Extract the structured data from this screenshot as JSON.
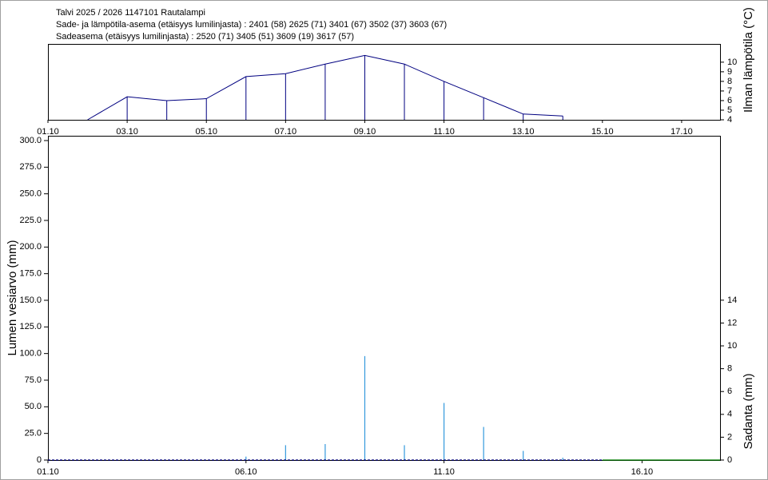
{
  "chart_data": [
    {
      "type": "line",
      "title": "Talvi 2025 / 2026 1147101 Rautalampi",
      "subtitles": [
        "Sade- ja lämpötila-asema (etäisyys lumilinjasta) :  2401 (58) 2625 (71) 3401 (67) 3502 (37) 3603 (67)",
        "Sadeasema (etäisyys lumilinjasta) :  2520 (71) 3405 (51) 3609 (19) 3617 (57)"
      ],
      "y_label": "Ilman lämpötila (°C)",
      "y_axis_side": "right",
      "drop_lines": true,
      "xlim": [
        1,
        17.97
      ],
      "xticks": [
        {
          "value": 1,
          "label": "01.10"
        },
        {
          "value": 3,
          "label": "03.10"
        },
        {
          "value": 5,
          "label": "05.10"
        },
        {
          "value": 7,
          "label": "07.10"
        },
        {
          "value": 9,
          "label": "09.10"
        },
        {
          "value": 11,
          "label": "11.10"
        },
        {
          "value": 13,
          "label": "13.10"
        },
        {
          "value": 15,
          "label": "15.10"
        },
        {
          "value": 17,
          "label": "17.10"
        }
      ],
      "ylim": [
        4,
        11.9
      ],
      "yticks": [
        4,
        5,
        6,
        7,
        8,
        9,
        10
      ],
      "series": [
        {
          "color": "#000080",
          "x": [
            2,
            3,
            4,
            5,
            6,
            7,
            8,
            9,
            10,
            11,
            12,
            13,
            14
          ],
          "values": [
            4.0,
            6.4,
            6.0,
            6.2,
            8.5,
            8.8,
            9.8,
            10.7,
            9.8,
            8.0,
            6.3,
            4.6,
            4.4
          ]
        }
      ]
    },
    {
      "type": "combo",
      "y_label": "Lumen vesiarvo (mm)",
      "y2_label": "Sadanta (mm)",
      "xlim": [
        1,
        17.97
      ],
      "xticks": [
        {
          "value": 1,
          "label": "01.10"
        },
        {
          "value": 6,
          "label": "06.10"
        },
        {
          "value": 11,
          "label": "11.10"
        },
        {
          "value": 16,
          "label": "16.10"
        }
      ],
      "ylim": [
        0,
        304.5
      ],
      "yticks": [
        0,
        {
          "value": 25,
          "label": "25.0"
        },
        {
          "value": 50,
          "label": "50.0"
        },
        {
          "value": 75,
          "label": "75.0"
        },
        {
          "value": 100,
          "label": "100.0"
        },
        {
          "value": 125,
          "label": "125.0"
        },
        {
          "value": 150,
          "label": "150.0"
        },
        {
          "value": 175,
          "label": "175.0"
        },
        {
          "value": 200,
          "label": "200.0"
        },
        {
          "value": 225,
          "label": "225.0"
        },
        {
          "value": 250,
          "label": "250.0"
        },
        {
          "value": 275,
          "label": "275.0"
        },
        {
          "value": 300,
          "label": "300.0"
        }
      ],
      "y2lim": [
        0,
        28.4
      ],
      "y2ticks": [
        0,
        2,
        4,
        6,
        8,
        10,
        12,
        14
      ],
      "series": [
        {
          "type": "bar",
          "axis": "y2",
          "color": "#3399dd",
          "x": [
            6,
            7,
            8,
            9,
            10,
            11,
            12,
            13,
            14
          ],
          "values": [
            0.3,
            1.3,
            1.4,
            9.1,
            1.3,
            5.0,
            2.9,
            0.8,
            0.2
          ]
        },
        {
          "type": "line",
          "dashed": true,
          "color": "#000080",
          "x": [
            1,
            2,
            3,
            4,
            5,
            6,
            7,
            8,
            9,
            10,
            11,
            12,
            13,
            14,
            15
          ],
          "values": [
            0,
            0,
            0,
            0,
            0,
            0,
            0,
            0,
            0,
            0,
            0,
            0,
            0,
            0,
            0
          ]
        },
        {
          "type": "line",
          "color": "#008000",
          "x": [
            15,
            16,
            17,
            18
          ],
          "values": [
            0,
            0,
            0,
            0
          ]
        }
      ]
    }
  ]
}
